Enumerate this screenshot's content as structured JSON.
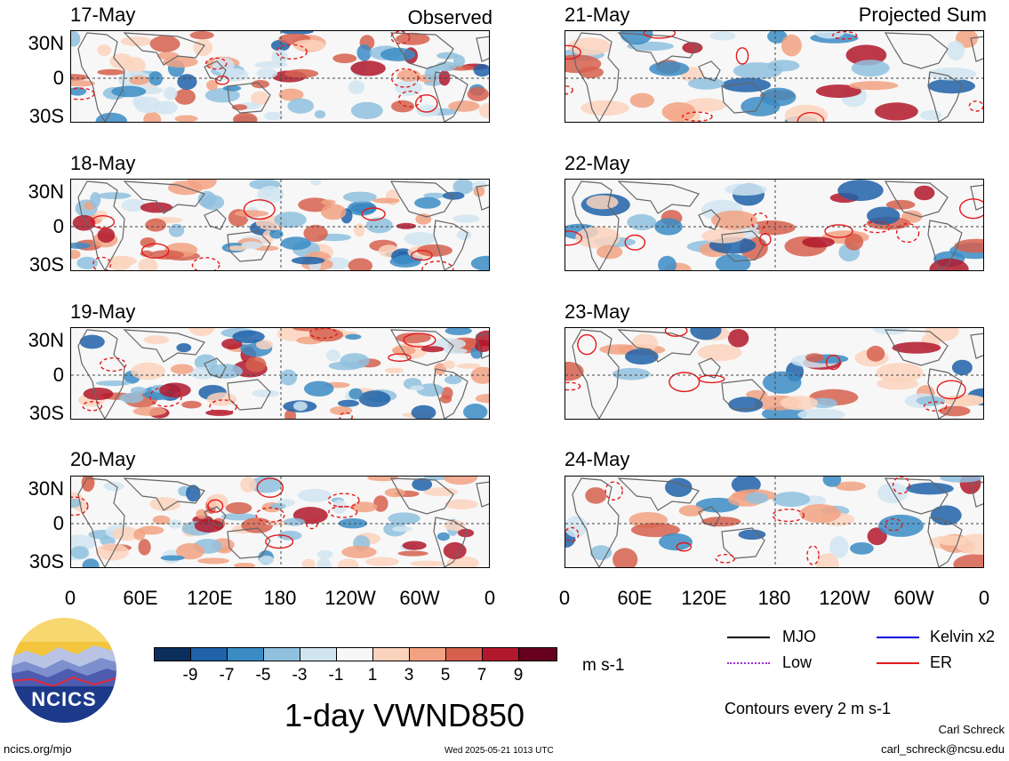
{
  "headers": {
    "left": "Observed",
    "right": "Projected Sum"
  },
  "dates_observed": [
    "17-May",
    "18-May",
    "19-May",
    "20-May"
  ],
  "dates_projected": [
    "21-May",
    "22-May",
    "23-May",
    "24-May"
  ],
  "lat_labels": [
    "30N",
    "0",
    "30S"
  ],
  "lon_labels": [
    "0",
    "60E",
    "120E",
    "180",
    "120W",
    "60W",
    "0"
  ],
  "colorbar": {
    "labels": [
      "-9",
      "-7",
      "-5",
      "-3",
      "-1",
      "1",
      "3",
      "5",
      "7",
      "9"
    ],
    "colors": [
      "#0b2e5c",
      "#1f62a8",
      "#3b8cc4",
      "#8fc1de",
      "#d1e5f1",
      "#f7f7f7",
      "#fbd3bd",
      "#f2a282",
      "#d6604d",
      "#b2182b",
      "#67001f"
    ],
    "units": "m s-1"
  },
  "legend": {
    "items": [
      {
        "label": "MJO",
        "color": "#000000",
        "style": "solid"
      },
      {
        "label": "Kelvin x2",
        "color": "#0000dd",
        "style": "solid"
      },
      {
        "label": "Low",
        "color": "#9b30d9",
        "style": "dotted"
      },
      {
        "label": "ER",
        "color": "#e41a1c",
        "style": "solid"
      }
    ],
    "contours_note": "Contours every 2 m s-1"
  },
  "title": "1-day VWND850",
  "logo_text": "NCICS",
  "footer": {
    "url": "ncics.org/mjo",
    "timestamp": "Wed 2025-05-21 1013 UTC",
    "author": "Carl Schreck",
    "email": "carl_schreck@ncsu.edu"
  }
}
